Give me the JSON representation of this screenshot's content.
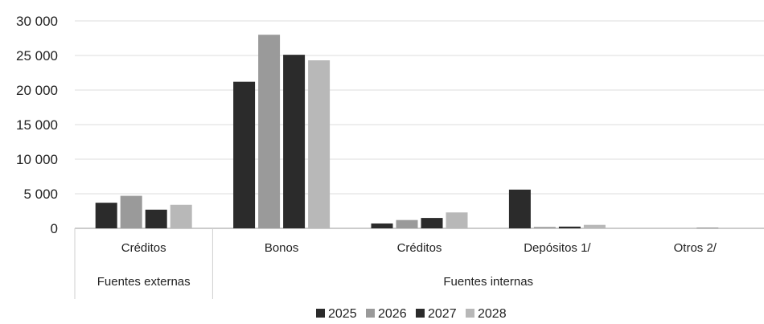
{
  "chart_data": {
    "type": "bar",
    "title": "",
    "xlabel": "",
    "ylabel": "",
    "ylim": [
      0,
      30000
    ],
    "yticks": [
      0,
      5000,
      10000,
      15000,
      20000,
      25000,
      30000
    ],
    "ytick_labels": [
      "0",
      "5 000",
      "10 000",
      "15 000",
      "20 000",
      "25 000",
      "30 000"
    ],
    "grid": true,
    "legend_position": "bottom",
    "categories": [
      "Créditos",
      "Bonos",
      "Créditos",
      "Depósitos 1/",
      "Otros 2/"
    ],
    "groups": [
      {
        "label": "Fuentes externas",
        "categories": [
          "Créditos"
        ]
      },
      {
        "label": "Fuentes internas",
        "categories": [
          "Bonos",
          "Créditos",
          "Depósitos 1/",
          "Otros 2/"
        ]
      }
    ],
    "series": [
      {
        "name": "2025",
        "color": "#2b2b2b",
        "values": [
          3700,
          21200,
          700,
          5600,
          0
        ]
      },
      {
        "name": "2026",
        "color": "#9a9a9a",
        "values": [
          4700,
          28000,
          1200,
          200,
          50
        ]
      },
      {
        "name": "2027",
        "color": "#2b2b2b",
        "values": [
          2700,
          25100,
          1500,
          250,
          60
        ]
      },
      {
        "name": "2028",
        "color": "#b8b8b8",
        "values": [
          3400,
          24300,
          2300,
          500,
          0
        ]
      }
    ]
  }
}
